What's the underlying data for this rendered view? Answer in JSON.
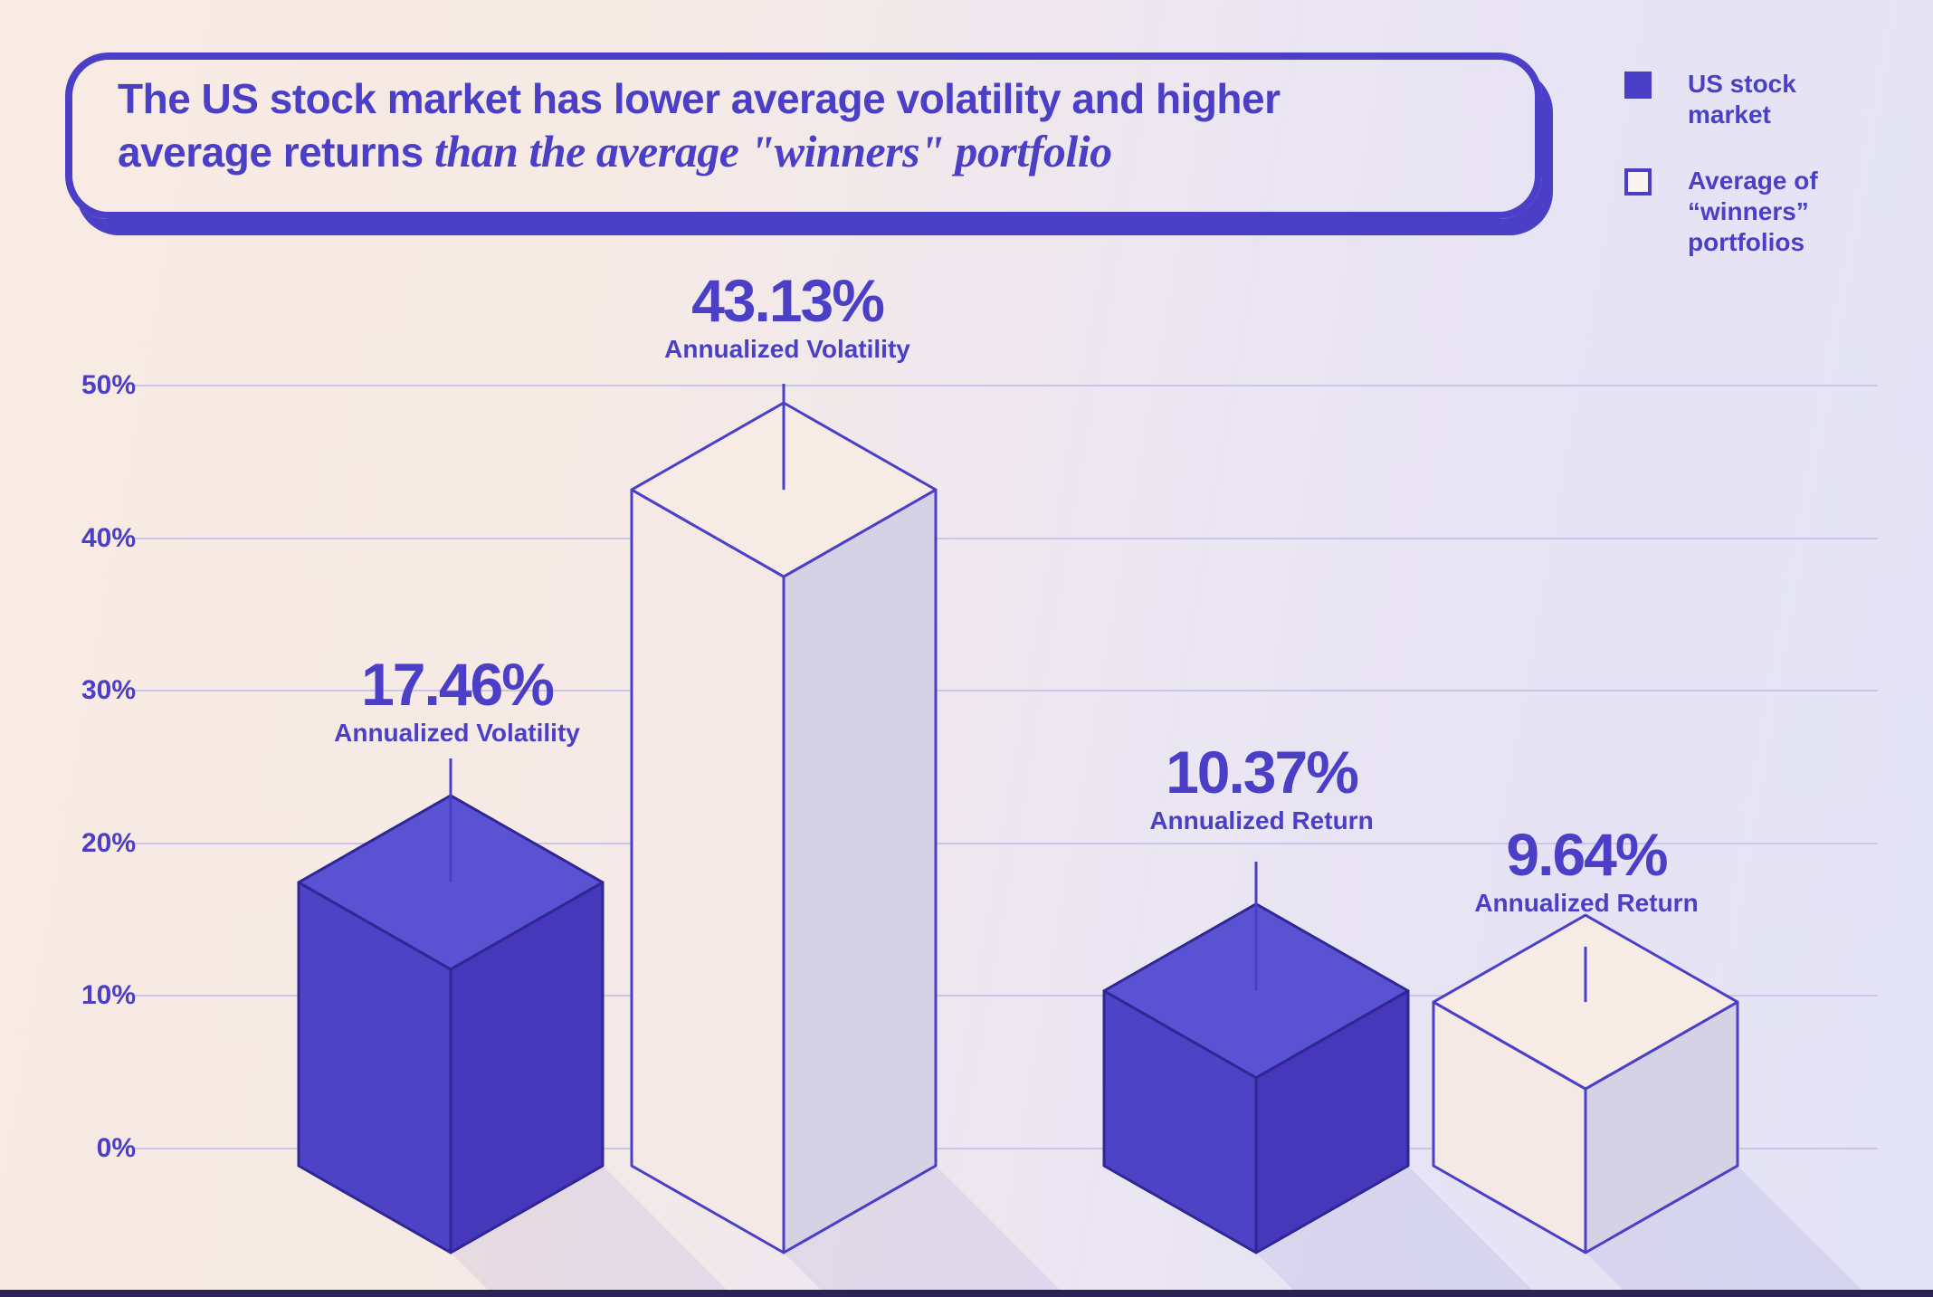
{
  "title": {
    "line1_bold": "The US stock market has lower average volatility and higher",
    "line2_bold": "average returns",
    "line2_italic": "than the average \"winners\" portfolio"
  },
  "legend": {
    "items": [
      {
        "swatch": "solid",
        "lines": [
          "US stock",
          "market"
        ]
      },
      {
        "swatch": "outline",
        "lines": [
          "Average of",
          "“winners”",
          "portfolios"
        ]
      }
    ]
  },
  "chart_data": {
    "type": "bar",
    "variant": "isometric-3d-columns",
    "title": "US stock market vs average winners portfolio: volatility and returns",
    "categories": [
      "Annualized Volatility",
      "Annualized Return"
    ],
    "series": [
      {
        "name": "US stock market",
        "values": [
          17.46,
          10.37
        ]
      },
      {
        "name": "Average of “winners” portfolios",
        "values": [
          43.13,
          9.64
        ]
      }
    ],
    "points": [
      {
        "series": "US stock market",
        "swatch": "solid",
        "metric": "Annualized Volatility",
        "value": 17.46,
        "value_label": "17.46%"
      },
      {
        "series": "Average of “winners” portfolios",
        "swatch": "outline",
        "metric": "Annualized Volatility",
        "value": 43.13,
        "value_label": "43.13%"
      },
      {
        "series": "US stock market",
        "swatch": "solid",
        "metric": "Annualized Return",
        "value": 10.37,
        "value_label": "10.37%"
      },
      {
        "series": "Average of “winners” portfolios",
        "swatch": "outline",
        "metric": "Annualized Return",
        "value": 9.64,
        "value_label": "9.64%"
      }
    ],
    "yticks": [
      "50%",
      "40%",
      "30%",
      "20%",
      "10%",
      "0%"
    ],
    "ylim": [
      0,
      50
    ],
    "grid": true,
    "legend_position": "top-right"
  },
  "colors": {
    "accent": "#4a3fc6",
    "grid": "#cbc6e9",
    "strip": "#2b2356",
    "bar_solid_top": "#5a52d3",
    "bar_solid_left": "#4e43c7",
    "bar_solid_right": "#4637bb",
    "bar_solid_stroke": "#2e2795",
    "bar_outline_top": "#f7ece5",
    "bar_outline_left": "#f4e9e4",
    "bar_outline_right": "#d6d2e6",
    "bar_outline_stroke": "#4a3fc6",
    "shadow": "rgba(100,90,190,0.10)",
    "background_left": "#f8ebe3",
    "background_right": "#e4e3f5"
  }
}
